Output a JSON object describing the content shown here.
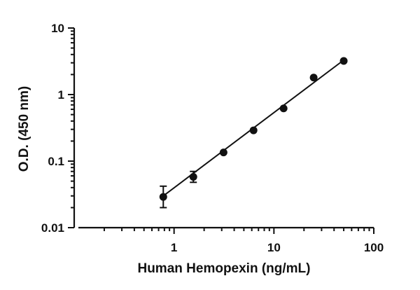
{
  "chart_data": {
    "type": "scatter",
    "xlabel": "Human Hemopexin (ng/mL)",
    "ylabel": "O.D. (450 nm)",
    "x_scale": "log",
    "y_scale": "log",
    "xlim": [
      0.1,
      100
    ],
    "ylim": [
      0.01,
      10
    ],
    "x_ticks": [
      {
        "value": 1,
        "label": "1"
      },
      {
        "value": 10,
        "label": "10"
      },
      {
        "value": 100,
        "label": "100"
      }
    ],
    "y_ticks": [
      {
        "value": 0.01,
        "label": "0.01"
      },
      {
        "value": 0.1,
        "label": "0.1"
      },
      {
        "value": 1,
        "label": "1"
      },
      {
        "value": 10,
        "label": "10"
      }
    ],
    "grid": false,
    "series": [
      {
        "marker": "circle",
        "color": "#111111",
        "points": [
          {
            "x": 0.78,
            "y": 0.029,
            "err_low": 0.02,
            "err_high": 0.042
          },
          {
            "x": 1.56,
            "y": 0.058,
            "err_low": 0.048,
            "err_high": 0.07
          },
          {
            "x": 3.13,
            "y": 0.135
          },
          {
            "x": 6.25,
            "y": 0.29
          },
          {
            "x": 12.5,
            "y": 0.62
          },
          {
            "x": 25,
            "y": 1.8
          },
          {
            "x": 50,
            "y": 3.2
          }
        ],
        "fit": {
          "type": "line",
          "x": [
            0.78,
            50
          ],
          "y": [
            0.03,
            3.3
          ]
        }
      }
    ]
  }
}
